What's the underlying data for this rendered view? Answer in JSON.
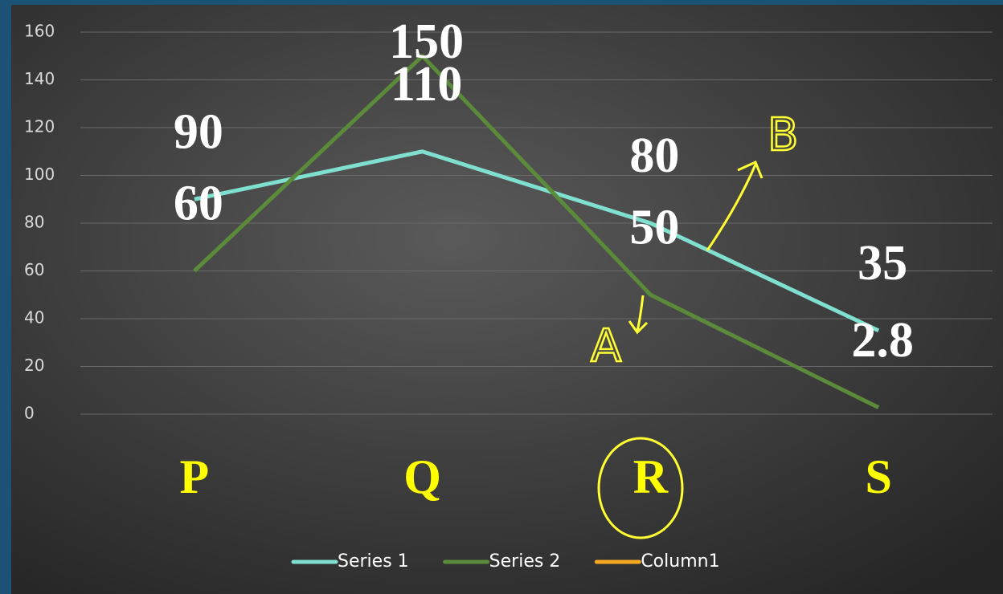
{
  "chart_data": {
    "type": "line",
    "categories": [
      "P",
      "Q",
      "R",
      "S"
    ],
    "series": [
      {
        "name": "Series 1",
        "color": "#7fe0d0",
        "values": [
          90,
          110,
          80,
          35
        ]
      },
      {
        "name": "Series 2",
        "color": "#5a8a3a",
        "values": [
          60,
          150,
          50,
          2.8
        ]
      },
      {
        "name": "Column1",
        "color": "#f5a623",
        "values": [
          null,
          null,
          null,
          null
        ]
      }
    ],
    "ylim": [
      0,
      160
    ],
    "yticks": [
      0,
      20,
      40,
      60,
      80,
      100,
      120,
      140,
      160
    ],
    "grid": true,
    "annotations": [
      "A",
      "B"
    ]
  }
}
